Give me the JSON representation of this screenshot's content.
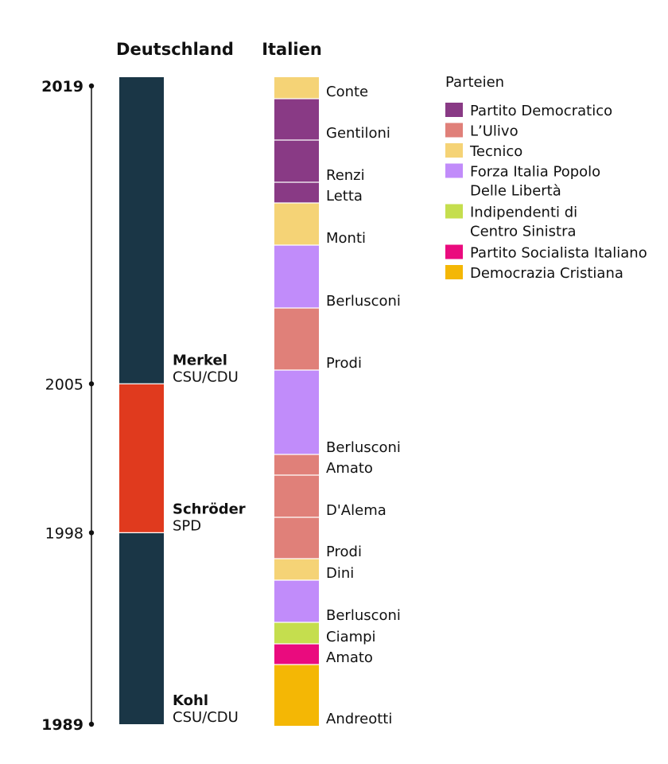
{
  "chart_data": {
    "type": "timeline",
    "columns": {
      "germany": "Deutschland",
      "italy": "Italien"
    },
    "years_axis": [
      {
        "year": 2019,
        "label": "2019",
        "bold": true
      },
      {
        "year": 2005,
        "label": "2005",
        "bold": false
      },
      {
        "year": 1998,
        "label": "1998",
        "bold": false
      },
      {
        "year": 1989,
        "label": "1989",
        "bold": true
      }
    ],
    "germany": [
      {
        "name": "Kohl",
        "party": "CSU/CDU",
        "start": 1989,
        "end": 1998,
        "color": "#1a3646"
      },
      {
        "name": "Schröder",
        "party": "SPD",
        "start": 1998,
        "end": 2005,
        "color": "#e03a1e"
      },
      {
        "name": "Merkel",
        "party": "CSU/CDU",
        "start": 2005,
        "end": 2019,
        "color": "#1a3646"
      }
    ],
    "italy": [
      {
        "name": "Andreotti",
        "party": "Democrazia Cristiana",
        "start": 1989,
        "end": 1992
      },
      {
        "name": "Amato",
        "party": "Partito Socialista Italiano",
        "start": 1992,
        "end": 1993
      },
      {
        "name": "Ciampi",
        "party": "Indipendenti di Centro Sinistra",
        "start": 1993,
        "end": 1994
      },
      {
        "name": "Berlusconi",
        "party": "Forza Italia Popolo Delle Libertà",
        "start": 1994,
        "end": 1996
      },
      {
        "name": "Dini",
        "party": "Tecnico",
        "start": 1996,
        "end": 1997
      },
      {
        "name": "Prodi",
        "party": "L'Ulivo",
        "start": 1997,
        "end": 1999
      },
      {
        "name": "D'Alema",
        "party": "L'Ulivo",
        "start": 1999,
        "end": 2001
      },
      {
        "name": "Amato",
        "party": "L'Ulivo",
        "start": 2001,
        "end": 2002
      },
      {
        "name": "Berlusconi",
        "party": "Forza Italia Popolo Delle Libertà",
        "start": 2002,
        "end": 2006
      },
      {
        "name": "Prodi",
        "party": "L'Ulivo",
        "start": 2006,
        "end": 2009
      },
      {
        "name": "Berlusconi",
        "party": "Forza Italia Popolo Delle Libertà",
        "start": 2009,
        "end": 2012
      },
      {
        "name": "Monti",
        "party": "Tecnico",
        "start": 2012,
        "end": 2014
      },
      {
        "name": "Letta",
        "party": "Partito Democratico",
        "start": 2014,
        "end": 2015
      },
      {
        "name": "Renzi",
        "party": "Partito Democratico",
        "start": 2015,
        "end": 2017
      },
      {
        "name": "Gentiloni",
        "party": "Partito Democratico",
        "start": 2017,
        "end": 2019
      },
      {
        "name": "Conte",
        "party": "Tecnico",
        "start": 2019,
        "end": 2020
      }
    ],
    "legend": {
      "title": "Parteien",
      "entries": [
        {
          "label": "Partito Democratico",
          "lines": [
            "Partito Democratico"
          ],
          "color": "#893a85"
        },
        {
          "label": "L'Ulivo",
          "lines": [
            "L’Ulivo"
          ],
          "color": "#e08079"
        },
        {
          "label": "Tecnico",
          "lines": [
            "Tecnico"
          ],
          "color": "#f5d376"
        },
        {
          "label": "Forza Italia Popolo Delle Libertà",
          "lines": [
            "Forza Italia Popolo",
            "Delle Libertà"
          ],
          "color": "#c18cfa"
        },
        {
          "label": "Indipendenti di Centro Sinistra",
          "lines": [
            "Indipendenti di",
            "Centro Sinistra"
          ],
          "color": "#c5de4e"
        },
        {
          "label": "Partito Socialista Italiano",
          "lines": [
            "Partito Socialista Italiano"
          ],
          "color": "#ea0b7e"
        },
        {
          "label": "Democrazia Cristiana",
          "lines": [
            "Democrazia Cristiana"
          ],
          "color": "#f4b705"
        }
      ]
    }
  }
}
